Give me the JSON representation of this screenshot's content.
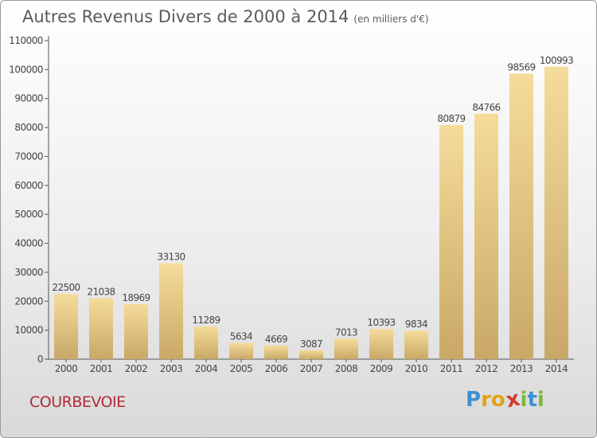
{
  "title": "Autres Revenus Divers de 2000 à 2014",
  "title_unit": "(en milliers d'€)",
  "city": "COURBEVOIE",
  "logo": {
    "text": "Proxiti",
    "letters": [
      {
        "ch": "P",
        "color": "#3d8fd1"
      },
      {
        "ch": "r",
        "color": "#e0a21a"
      },
      {
        "ch": "o",
        "color": "#e0a21a"
      },
      {
        "ch": "x",
        "color": "#d23a2a"
      },
      {
        "ch": "i",
        "color": "#7bb83a"
      },
      {
        "ch": "t",
        "color": "#3d8fd1"
      },
      {
        "ch": "i",
        "color": "#7bb83a"
      }
    ]
  },
  "colors": {
    "bar_light": "#f5dc9a",
    "bar_dark": "#c9a867",
    "text": "#444444",
    "axis": "#555555"
  },
  "chart_data": {
    "type": "bar",
    "title": "Autres Revenus Divers de 2000 à 2014",
    "xlabel": "",
    "ylabel": "",
    "categories": [
      "2000",
      "2001",
      "2002",
      "2003",
      "2004",
      "2005",
      "2006",
      "2007",
      "2008",
      "2009",
      "2010",
      "2011",
      "2012",
      "2013",
      "2014"
    ],
    "values": [
      22500,
      21038,
      18969,
      33130,
      11289,
      5634,
      4669,
      3087,
      7013,
      10393,
      9834,
      80879,
      84766,
      98569,
      100993
    ],
    "data_labels": [
      "22500",
      "21038",
      "18969",
      "33130",
      "11289",
      "5634",
      "4669",
      "3087",
      "7013",
      "10393",
      "9834",
      "80879",
      "84766",
      "98569",
      "100993"
    ],
    "ylim": [
      0,
      110000
    ],
    "yticks": [
      0,
      10000,
      20000,
      30000,
      40000,
      50000,
      60000,
      70000,
      80000,
      90000,
      100000,
      110000
    ],
    "grid": false
  }
}
